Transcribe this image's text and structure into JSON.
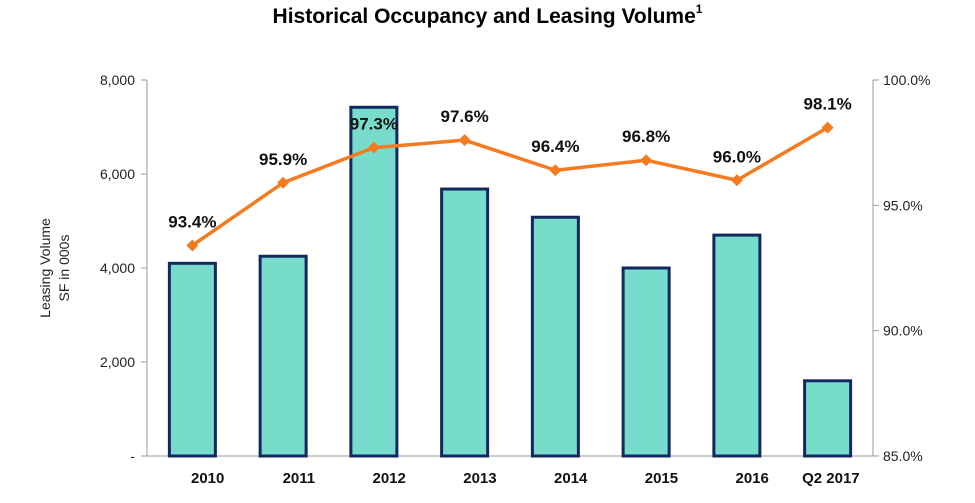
{
  "chart_data": {
    "type": "bar",
    "title": "Historical Occupancy and Leasing Volume",
    "title_superscript": "1",
    "categories": [
      "2010",
      "2011",
      "2012",
      "2013",
      "2014",
      "2015",
      "2016",
      "Q2 2017"
    ],
    "series": [
      {
        "name": "Leasing Volume",
        "type": "bar",
        "axis": "left",
        "values": [
          4100,
          4250,
          7420,
          5680,
          5080,
          4000,
          4700,
          1600
        ]
      },
      {
        "name": "Occupancy",
        "type": "line",
        "axis": "right",
        "values": [
          93.4,
          95.9,
          97.3,
          97.6,
          96.4,
          96.8,
          96.0,
          98.1
        ],
        "labels": [
          "93.4%",
          "95.9%",
          "97.3%",
          "97.6%",
          "96.4%",
          "96.8%",
          "96.0%",
          "98.1%"
        ]
      }
    ],
    "ylabel_lines": [
      "Leasing Volume",
      "SF in 000s"
    ],
    "ylim": [
      0,
      8000
    ],
    "yticks": [
      0,
      2000,
      4000,
      6000,
      8000
    ],
    "ytick_labels": [
      "-",
      "2,000",
      "4,000",
      "6,000",
      "8,000"
    ],
    "y2lim": [
      85,
      100
    ],
    "y2ticks": [
      85,
      90,
      95,
      100
    ],
    "y2tick_labels": [
      "85.0%",
      "90.0%",
      "95.0%",
      "100.0%"
    ],
    "colors": {
      "bar_fill": "#78dccc",
      "bar_stroke": "#13285e",
      "line": "#f47b20",
      "axis": "#9a9a9a"
    }
  }
}
